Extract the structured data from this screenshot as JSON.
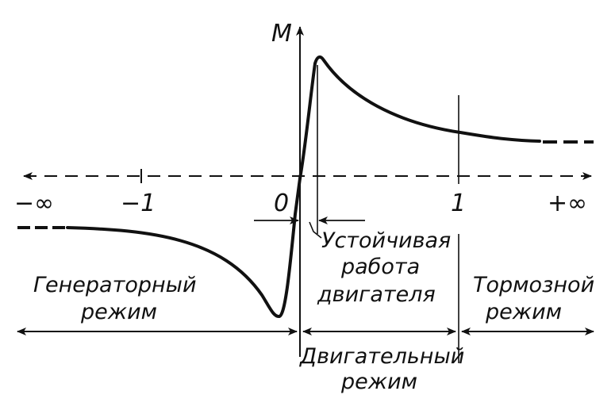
{
  "axes": {
    "y_label": "M",
    "x_ticks": {
      "neg_inf": "−∞",
      "minus_one": "−1",
      "zero": "0",
      "one": "1",
      "pos_inf": "+∞"
    }
  },
  "annotations": {
    "stable_line1": "Устойчивая",
    "stable_line2": "работа",
    "stable_line3": "двигателя"
  },
  "regions": {
    "generator": {
      "line1": "Генераторный",
      "line2": "режим"
    },
    "motor": {
      "line1": "Двигательный",
      "line2": "режим"
    },
    "brake": {
      "line1": "Тормозной",
      "line2": "режим"
    }
  },
  "colors": {
    "ink": "#111111",
    "background": "#ffffff"
  }
}
